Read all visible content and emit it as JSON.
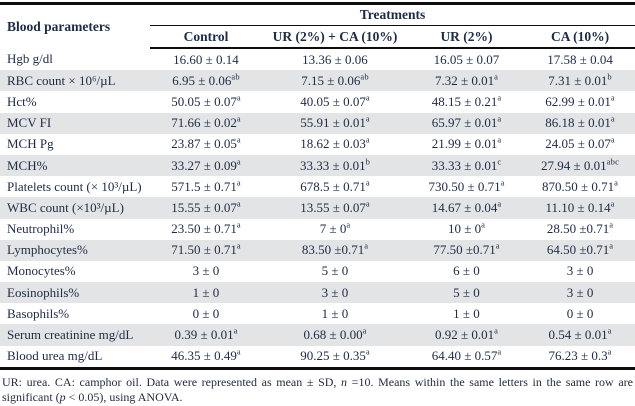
{
  "table": {
    "param_header": "Blood parameters",
    "group_header": "Treatments",
    "columns": [
      "Control",
      "UR (2%) + CA (10%)",
      "UR (2%)",
      "CA (10%)"
    ],
    "rows": [
      {
        "label": "Hgb g/dl",
        "values": [
          {
            "v": "16.60 ± 0.14",
            "s": ""
          },
          {
            "v": "13.36 ± 0.06",
            "s": ""
          },
          {
            "v": "16.05 ± 0.07",
            "s": ""
          },
          {
            "v": "17.58 ± 0.04",
            "s": ""
          }
        ]
      },
      {
        "label": "RBC count × 10⁶/µL",
        "values": [
          {
            "v": "6.95 ± 0.06",
            "s": "ab"
          },
          {
            "v": "7.15 ± 0.06",
            "s": "ab"
          },
          {
            "v": "7.32 ± 0.01",
            "s": "a"
          },
          {
            "v": "7.31 ± 0.01",
            "s": "b"
          }
        ]
      },
      {
        "label": "Hct%",
        "values": [
          {
            "v": "50.05 ± 0.07",
            "s": "a"
          },
          {
            "v": "40.05 ± 0.07",
            "s": "a"
          },
          {
            "v": "48.15 ± 0.21",
            "s": "a"
          },
          {
            "v": "62.99 ± 0.01",
            "s": "a"
          }
        ]
      },
      {
        "label": "MCV FI",
        "values": [
          {
            "v": "71.66 ± 0.02",
            "s": "a"
          },
          {
            "v": "55.91 ± 0.01",
            "s": "a"
          },
          {
            "v": "65.97 ± 0.01",
            "s": "a"
          },
          {
            "v": "86.18 ± 0.01",
            "s": "a"
          }
        ]
      },
      {
        "label": "MCH Pg",
        "values": [
          {
            "v": "23.87 ± 0.05",
            "s": "a"
          },
          {
            "v": "18.62 ± 0.03",
            "s": "a"
          },
          {
            "v": "21.99 ± 0.01",
            "s": "a"
          },
          {
            "v": "24.05 ± 0.07",
            "s": "a"
          }
        ]
      },
      {
        "label": "MCH%",
        "values": [
          {
            "v": "33.27 ± 0.09",
            "s": "a"
          },
          {
            "v": "33.33 ± 0.01",
            "s": "b"
          },
          {
            "v": "33.33 ± 0.01",
            "s": "c"
          },
          {
            "v": "27.94 ± 0.01",
            "s": "abc"
          }
        ]
      },
      {
        "label": "Platelets count (× 10³/µL)",
        "values": [
          {
            "v": "571.5 ± 0.71",
            "s": "a"
          },
          {
            "v": "678.5 ± 0.71",
            "s": "a"
          },
          {
            "v": "730.50 ± 0.71",
            "s": "a"
          },
          {
            "v": "870.50 ± 0.71",
            "s": "a"
          }
        ]
      },
      {
        "label": "WBC count (×10³/µL)",
        "values": [
          {
            "v": "15.55 ± 0.07",
            "s": "a"
          },
          {
            "v": "13.55 ± 0.07",
            "s": "a"
          },
          {
            "v": "14.67 ± 0.04",
            "s": "a"
          },
          {
            "v": "11.10 ± 0.14",
            "s": "a"
          }
        ]
      },
      {
        "label": "Neutrophil%",
        "values": [
          {
            "v": "23.50 ± 0.71",
            "s": "a"
          },
          {
            "v": "7 ± 0",
            "s": "a"
          },
          {
            "v": "10 ± 0",
            "s": "a"
          },
          {
            "v": "28.50 ±0.71",
            "s": "a"
          }
        ]
      },
      {
        "label": "Lymphocytes%",
        "values": [
          {
            "v": "71.50 ± 0.71",
            "s": "a"
          },
          {
            "v": "83.50 ±0.71",
            "s": "a"
          },
          {
            "v": "77.50 ±0.71",
            "s": "a"
          },
          {
            "v": "64.50 ±0.71",
            "s": "a"
          }
        ]
      },
      {
        "label": "Monocytes%",
        "values": [
          {
            "v": "3 ± 0",
            "s": ""
          },
          {
            "v": "5 ± 0",
            "s": ""
          },
          {
            "v": "6 ± 0",
            "s": ""
          },
          {
            "v": "3 ± 0",
            "s": ""
          }
        ]
      },
      {
        "label": "Eosinophils%",
        "values": [
          {
            "v": "1 ± 0",
            "s": ""
          },
          {
            "v": "3 ± 0",
            "s": ""
          },
          {
            "v": "5 ± 0",
            "s": ""
          },
          {
            "v": "3 ± 0",
            "s": ""
          }
        ]
      },
      {
        "label": "Basophils%",
        "values": [
          {
            "v": "0 ± 0",
            "s": ""
          },
          {
            "v": "1 ± 0",
            "s": ""
          },
          {
            "v": "1 ± 0",
            "s": ""
          },
          {
            "v": "0 ± 0",
            "s": ""
          }
        ]
      },
      {
        "label": "Serum creatinine mg/dL",
        "values": [
          {
            "v": "0.39 ± 0.01",
            "s": "a"
          },
          {
            "v": "0.68 ± 0.00",
            "s": "a"
          },
          {
            "v": "0.92 ± 0.01",
            "s": "a"
          },
          {
            "v": "0.54 ± 0.01",
            "s": "a"
          }
        ]
      },
      {
        "label": "Blood urea mg/dL",
        "values": [
          {
            "v": "46.35 ± 0.49",
            "s": "a"
          },
          {
            "v": "90.25 ± 0.35",
            "s": "a"
          },
          {
            "v": "64.40 ± 0.57",
            "s": "a"
          },
          {
            "v": "76.23 ± 0.3",
            "s": "a"
          }
        ]
      }
    ]
  },
  "footnote": {
    "parts": [
      {
        "t": "UR: urea. CA: camphor oil. Data were represented as mean ± SD, ",
        "i": false
      },
      {
        "t": "n",
        "i": true
      },
      {
        "t": " =10. Means within the same letters in the same row are significant (",
        "i": false
      },
      {
        "t": "p",
        "i": true
      },
      {
        "t": " < 0.05), using ANOVA.",
        "i": false
      }
    ]
  }
}
